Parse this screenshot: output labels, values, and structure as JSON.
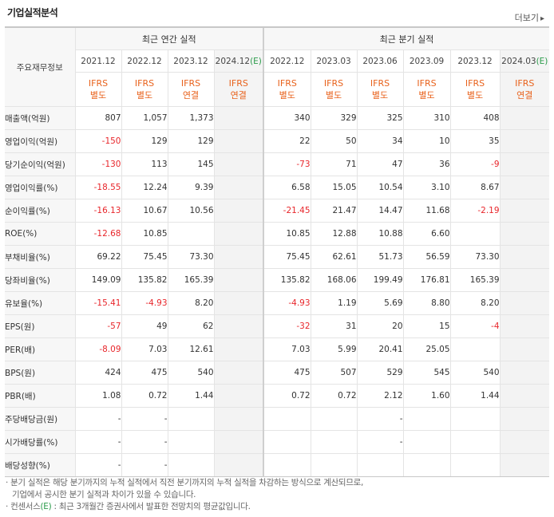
{
  "header": {
    "title": "기업실적분석",
    "more_label": "더보기",
    "more_arrow": "▸"
  },
  "table": {
    "corner_label": "주요재무정보",
    "annual_group": "최근 연간 실적",
    "quarter_group": "최근 분기 실적",
    "periods": [
      {
        "label": "2021.12",
        "est": ""
      },
      {
        "label": "2022.12",
        "est": ""
      },
      {
        "label": "2023.12",
        "est": ""
      },
      {
        "label": "2024.12",
        "est": "(E)"
      },
      {
        "label": "2022.12",
        "est": ""
      },
      {
        "label": "2023.03",
        "est": ""
      },
      {
        "label": "2023.06",
        "est": ""
      },
      {
        "label": "2023.09",
        "est": ""
      },
      {
        "label": "2023.12",
        "est": ""
      },
      {
        "label": "2024.03",
        "est": "(E)"
      }
    ],
    "ifrs": [
      {
        "a": "IFRS",
        "b": "별도"
      },
      {
        "a": "IFRS",
        "b": "별도"
      },
      {
        "a": "IFRS",
        "b": "연결"
      },
      {
        "a": "IFRS",
        "b": "연결"
      },
      {
        "a": "IFRS",
        "b": "별도"
      },
      {
        "a": "IFRS",
        "b": "별도"
      },
      {
        "a": "IFRS",
        "b": "별도"
      },
      {
        "a": "IFRS",
        "b": "별도"
      },
      {
        "a": "IFRS",
        "b": "별도"
      },
      {
        "a": "IFRS",
        "b": "연결"
      }
    ],
    "rows": [
      {
        "label": "매출액(억원)",
        "values": [
          "807",
          "1,057",
          "1,373",
          "",
          "340",
          "329",
          "325",
          "310",
          "408",
          ""
        ]
      },
      {
        "label": "영업이익(억원)",
        "values": [
          "-150",
          "129",
          "129",
          "",
          "22",
          "50",
          "34",
          "10",
          "35",
          ""
        ]
      },
      {
        "label": "당기순이익(억원)",
        "values": [
          "-130",
          "113",
          "145",
          "",
          "-73",
          "71",
          "47",
          "36",
          "-9",
          ""
        ]
      },
      {
        "label": "영업이익률(%)",
        "values": [
          "-18.55",
          "12.24",
          "9.39",
          "",
          "6.58",
          "15.05",
          "10.54",
          "3.10",
          "8.67",
          ""
        ]
      },
      {
        "label": "순이익률(%)",
        "values": [
          "-16.13",
          "10.67",
          "10.56",
          "",
          "-21.45",
          "21.47",
          "14.47",
          "11.68",
          "-2.19",
          ""
        ]
      },
      {
        "label": "ROE(%)",
        "values": [
          "-12.68",
          "10.85",
          "",
          "",
          "10.85",
          "12.88",
          "10.88",
          "6.60",
          "",
          ""
        ]
      },
      {
        "label": "부채비율(%)",
        "values": [
          "69.22",
          "75.45",
          "73.30",
          "",
          "75.45",
          "62.61",
          "51.73",
          "56.59",
          "73.30",
          ""
        ]
      },
      {
        "label": "당좌비율(%)",
        "values": [
          "149.09",
          "135.82",
          "165.39",
          "",
          "135.82",
          "168.06",
          "199.49",
          "176.81",
          "165.39",
          ""
        ]
      },
      {
        "label": "유보율(%)",
        "values": [
          "-15.41",
          "-4.93",
          "8.20",
          "",
          "-4.93",
          "1.19",
          "5.69",
          "8.80",
          "8.20",
          ""
        ]
      },
      {
        "label": "EPS(원)",
        "values": [
          "-57",
          "49",
          "62",
          "",
          "-32",
          "31",
          "20",
          "15",
          "-4",
          ""
        ]
      },
      {
        "label": "PER(배)",
        "values": [
          "-8.09",
          "7.03",
          "12.61",
          "",
          "7.03",
          "5.99",
          "20.41",
          "25.05",
          "",
          ""
        ]
      },
      {
        "label": "BPS(원)",
        "values": [
          "424",
          "475",
          "540",
          "",
          "475",
          "507",
          "529",
          "545",
          "540",
          ""
        ]
      },
      {
        "label": "PBR(배)",
        "values": [
          "1.08",
          "0.72",
          "1.44",
          "",
          "0.72",
          "0.72",
          "2.12",
          "1.60",
          "1.44",
          ""
        ]
      },
      {
        "label": "주당배당금(원)",
        "values": [
          "-",
          "-",
          "",
          "",
          "",
          "",
          "-",
          "",
          "",
          ""
        ]
      },
      {
        "label": "시가배당률(%)",
        "values": [
          "-",
          "-",
          "",
          "",
          "",
          "",
          "-",
          "",
          "",
          ""
        ]
      },
      {
        "label": "배당성향(%)",
        "values": [
          "-",
          "-",
          "",
          "",
          "",
          "",
          "",
          "",
          "",
          ""
        ]
      }
    ]
  },
  "notes": {
    "line1": "· 분기 실적은 해당 분기까지의 누적 실적에서 직전 분기까지의 누적 실적을 차감하는 방식으로 계산되므로,",
    "line2": "기업에서 공시한 분기 실적과 차이가 있을 수 있습니다.",
    "line3_prefix": "· 컨센서스",
    "line3_e": "(E)",
    "line3_rest": " : 최근 3개월간 증권사에서 발표한 전망치의 평균값입니다."
  },
  "colors": {
    "negative": "#e8262b",
    "ifrs": "#e8621c",
    "estimate_mark": "#2a9b4a"
  }
}
